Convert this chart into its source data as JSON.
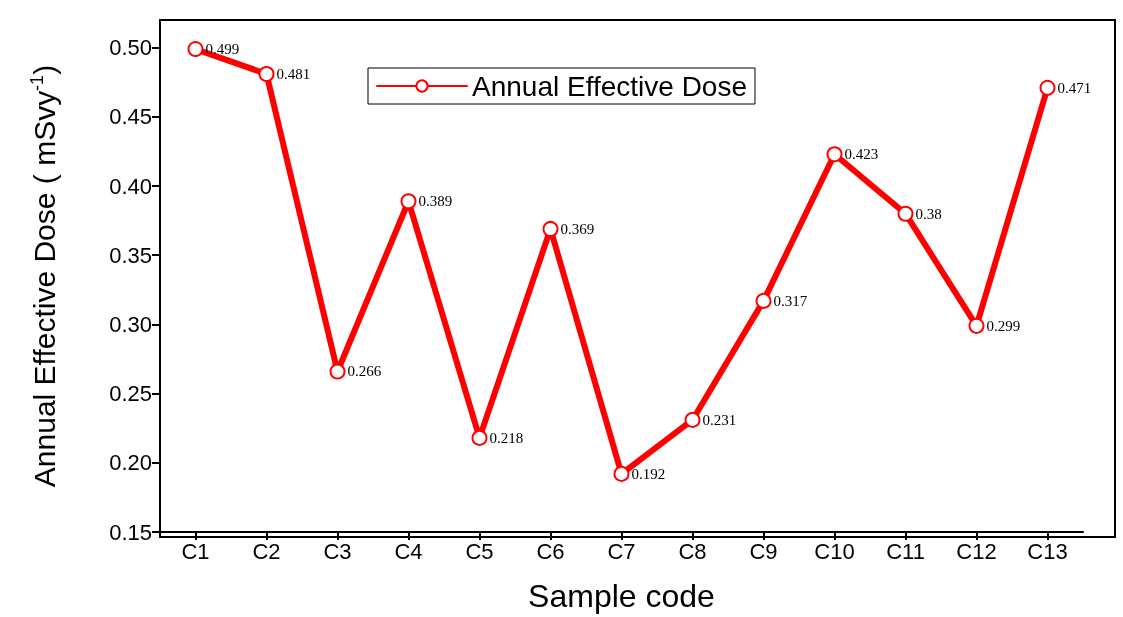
{
  "chart_data": {
    "type": "line",
    "xlabel": "Sample code",
    "ylabel": "Annual Effective Dose ( mSvy$^{-1}$)",
    "categories": [
      "C1",
      "C2",
      "C3",
      "C4",
      "C5",
      "C6",
      "C7",
      "C8",
      "C9",
      "C10",
      "C11",
      "C12",
      "C13"
    ],
    "series": [
      {
        "name": "Annual Effective Dose",
        "color": "#ff0000",
        "values": [
          0.499,
          0.481,
          0.266,
          0.389,
          0.218,
          0.369,
          0.192,
          0.231,
          0.317,
          0.423,
          0.38,
          0.299,
          0.471
        ]
      }
    ],
    "ylim": [
      0.15,
      0.52
    ],
    "yticks": [
      0.15,
      {
        "value": 0.2,
        "label": "0.20"
      },
      0.25,
      {
        "value": 0.3,
        "label": "0.30"
      },
      0.35,
      {
        "value": 0.4,
        "label": "0.40"
      },
      0.45,
      {
        "value": 0.5,
        "label": "0.50"
      }
    ],
    "grid": false,
    "legend": "top",
    "marker": "circle",
    "line_style": "solid",
    "data_labels": true
  }
}
